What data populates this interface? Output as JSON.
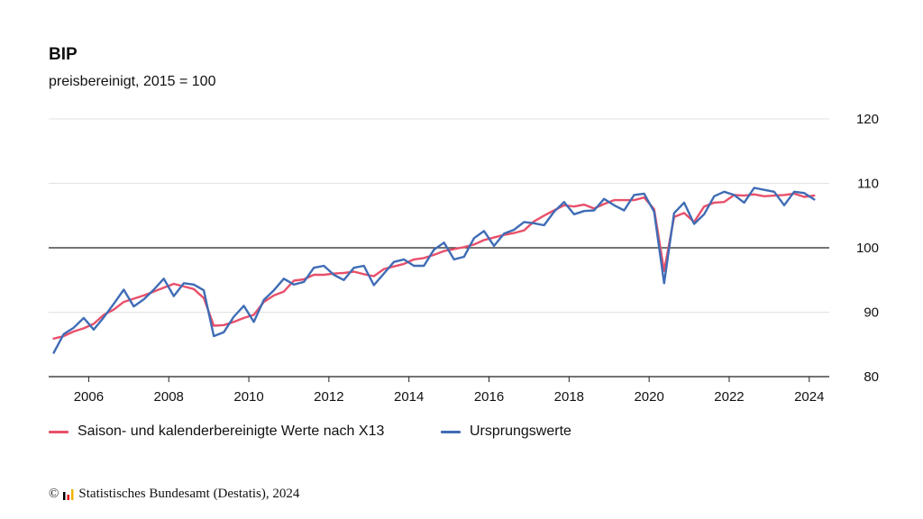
{
  "chart_data": {
    "type": "line",
    "title": "BIP",
    "subtitle": "preisbereinigt, 2015 = 100",
    "xlabel": "",
    "ylabel": "",
    "xlim": [
      2005.0,
      2024.5
    ],
    "ylim": [
      80,
      120
    ],
    "y_ticks": [
      80,
      90,
      100,
      110,
      120
    ],
    "x_ticks": [
      2006,
      2008,
      2010,
      2012,
      2014,
      2016,
      2018,
      2020,
      2022,
      2024
    ],
    "reference_line": 100,
    "grid": true,
    "legend_position": "bottom",
    "x": [
      2005.125,
      2005.375,
      2005.625,
      2005.875,
      2006.125,
      2006.375,
      2006.625,
      2006.875,
      2007.125,
      2007.375,
      2007.625,
      2007.875,
      2008.125,
      2008.375,
      2008.625,
      2008.875,
      2009.125,
      2009.375,
      2009.625,
      2009.875,
      2010.125,
      2010.375,
      2010.625,
      2010.875,
      2011.125,
      2011.375,
      2011.625,
      2011.875,
      2012.125,
      2012.375,
      2012.625,
      2012.875,
      2013.125,
      2013.375,
      2013.625,
      2013.875,
      2014.125,
      2014.375,
      2014.625,
      2014.875,
      2015.125,
      2015.375,
      2015.625,
      2015.875,
      2016.125,
      2016.375,
      2016.625,
      2016.875,
      2017.125,
      2017.375,
      2017.625,
      2017.875,
      2018.125,
      2018.375,
      2018.625,
      2018.875,
      2019.125,
      2019.375,
      2019.625,
      2019.875,
      2020.125,
      2020.375,
      2020.625,
      2020.875,
      2021.125,
      2021.375,
      2021.625,
      2021.875,
      2022.125,
      2022.375,
      2022.625,
      2022.875,
      2023.125,
      2023.375,
      2023.625,
      2023.875,
      2024.125
    ],
    "series": [
      {
        "name": "Saison- und kalenderbereinigte Werte nach X13",
        "color": "#e8506a",
        "values": [
          85.9,
          86.3,
          87.0,
          87.5,
          88.2,
          89.6,
          90.4,
          91.6,
          92.1,
          92.6,
          93.2,
          93.8,
          94.4,
          94.0,
          93.6,
          92.2,
          87.9,
          88.0,
          88.5,
          89.1,
          89.6,
          91.6,
          92.6,
          93.2,
          94.9,
          95.1,
          95.8,
          95.8,
          96.0,
          96.1,
          96.3,
          95.9,
          95.6,
          96.7,
          97.1,
          97.5,
          98.2,
          98.4,
          98.9,
          99.5,
          99.8,
          100.1,
          100.5,
          101.2,
          101.6,
          102.0,
          102.3,
          102.7,
          104.1,
          105.0,
          105.8,
          106.6,
          106.4,
          106.7,
          106.1,
          106.8,
          107.4,
          107.4,
          107.4,
          107.8,
          106.0,
          96.4,
          104.8,
          105.4,
          104.0,
          106.4,
          107.0,
          107.1,
          108.2,
          108.1,
          108.3,
          108.0,
          108.1,
          108.2,
          108.4,
          107.9,
          108.1
        ]
      },
      {
        "name": "Ursprungswerte",
        "color": "#3f6cb5",
        "values": [
          83.7,
          86.6,
          87.6,
          89.1,
          87.3,
          89.2,
          91.3,
          93.5,
          90.9,
          92.0,
          93.5,
          95.2,
          92.5,
          94.5,
          94.3,
          93.4,
          86.3,
          86.9,
          89.3,
          91.0,
          88.5,
          91.9,
          93.4,
          95.2,
          94.3,
          94.7,
          96.9,
          97.2,
          95.8,
          95.0,
          96.9,
          97.2,
          94.2,
          96.0,
          97.8,
          98.2,
          97.2,
          97.2,
          99.7,
          100.8,
          98.2,
          98.6,
          101.5,
          102.6,
          100.3,
          102.2,
          102.8,
          104.0,
          103.8,
          103.5,
          105.6,
          107.1,
          105.2,
          105.7,
          105.8,
          107.6,
          106.6,
          105.8,
          108.2,
          108.4,
          105.6,
          94.5,
          105.4,
          107.0,
          103.7,
          105.2,
          108.0,
          108.7,
          108.2,
          107.0,
          109.3,
          109.0,
          108.7,
          106.6,
          108.7,
          108.5,
          107.5
        ]
      }
    ]
  },
  "copyright": {
    "symbol": "©",
    "text": "Statistisches Bundesamt (Destatis), 2024"
  }
}
